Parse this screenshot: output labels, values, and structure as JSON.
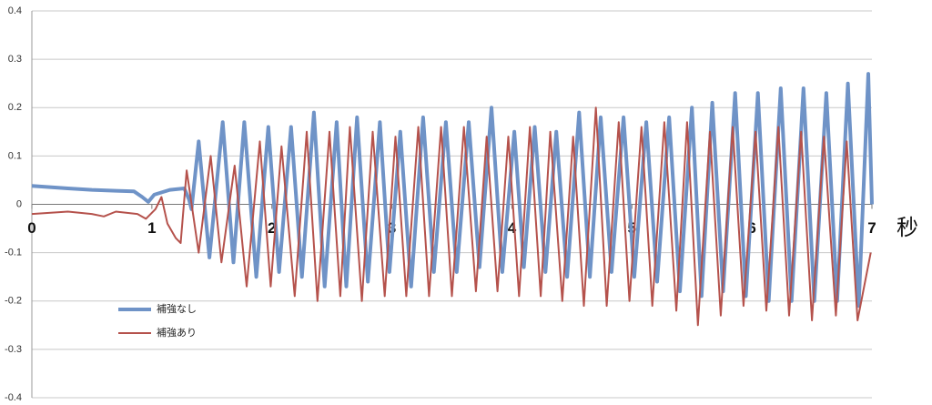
{
  "chart_data": {
    "type": "line",
    "x_label": "秒",
    "xlim": [
      0,
      7
    ],
    "xticks": [
      0,
      1,
      2,
      3,
      4,
      5,
      6,
      7
    ],
    "ylim": [
      -0.4,
      0.4
    ],
    "yticks": [
      -0.4,
      -0.3,
      -0.2,
      -0.1,
      0,
      0.1,
      0.2,
      0.3,
      0.4
    ],
    "grid": true,
    "legend": "lower left",
    "series": [
      {
        "name": "補強なし",
        "color": "#6f93c7",
        "width": 4,
        "x": [
          0,
          0.3,
          0.5,
          0.7,
          0.85,
          0.92,
          0.97,
          1.02,
          1.15,
          1.27,
          1.31,
          1.33,
          1.39,
          1.48,
          1.59,
          1.68,
          1.77,
          1.87,
          1.97,
          2.06,
          2.16,
          2.25,
          2.35,
          2.44,
          2.54,
          2.62,
          2.71,
          2.8,
          2.9,
          2.98,
          3.07,
          3.16,
          3.26,
          3.35,
          3.45,
          3.54,
          3.64,
          3.73,
          3.83,
          3.92,
          4.02,
          4.1,
          4.19,
          4.28,
          4.37,
          4.46,
          4.56,
          4.65,
          4.74,
          4.83,
          4.93,
          5.02,
          5.12,
          5.21,
          5.31,
          5.4,
          5.5,
          5.58,
          5.67,
          5.76,
          5.86,
          5.95,
          6.05,
          6.14,
          6.24,
          6.33,
          6.43,
          6.52,
          6.62,
          6.71,
          6.8,
          6.89,
          6.97,
          7.0
        ],
        "values": [
          0.038,
          0.033,
          0.03,
          0.028,
          0.027,
          0.015,
          0.005,
          0.02,
          0.03,
          0.033,
          0.01,
          -0.01,
          0.13,
          -0.11,
          0.17,
          -0.12,
          0.17,
          -0.15,
          0.16,
          -0.14,
          0.16,
          -0.15,
          0.19,
          -0.17,
          0.17,
          -0.17,
          0.18,
          -0.16,
          0.17,
          -0.14,
          0.15,
          -0.17,
          0.18,
          -0.14,
          0.17,
          -0.14,
          0.17,
          -0.13,
          0.2,
          -0.14,
          0.15,
          -0.13,
          0.16,
          -0.14,
          0.15,
          -0.15,
          0.19,
          -0.15,
          0.18,
          -0.14,
          0.18,
          -0.15,
          0.17,
          -0.16,
          0.18,
          -0.18,
          0.2,
          -0.19,
          0.21,
          -0.18,
          0.23,
          -0.19,
          0.23,
          -0.2,
          0.24,
          -0.2,
          0.24,
          -0.2,
          0.23,
          -0.2,
          0.25,
          -0.21,
          0.27,
          0.0
        ]
      },
      {
        "name": "補強あり",
        "color": "#b5524c",
        "width": 2,
        "x": [
          0,
          0.3,
          0.5,
          0.6,
          0.7,
          0.88,
          0.95,
          1.03,
          1.08,
          1.13,
          1.2,
          1.24,
          1.29,
          1.39,
          1.49,
          1.58,
          1.69,
          1.79,
          1.9,
          1.99,
          2.08,
          2.19,
          2.29,
          2.38,
          2.48,
          2.57,
          2.65,
          2.75,
          2.84,
          2.94,
          3.03,
          3.12,
          3.22,
          3.31,
          3.41,
          3.5,
          3.6,
          3.7,
          3.79,
          3.88,
          3.97,
          4.06,
          4.15,
          4.24,
          4.32,
          4.42,
          4.51,
          4.6,
          4.7,
          4.79,
          4.89,
          4.98,
          5.08,
          5.17,
          5.27,
          5.37,
          5.46,
          5.55,
          5.65,
          5.74,
          5.84,
          5.93,
          6.03,
          6.12,
          6.22,
          6.31,
          6.41,
          6.5,
          6.6,
          6.7,
          6.79,
          6.88,
          6.99
        ],
        "values": [
          -0.02,
          -0.015,
          -0.02,
          -0.025,
          -0.015,
          -0.02,
          -0.03,
          -0.01,
          0.015,
          -0.04,
          -0.07,
          -0.08,
          0.07,
          -0.1,
          0.1,
          -0.12,
          0.08,
          -0.17,
          0.13,
          -0.17,
          0.12,
          -0.19,
          0.15,
          -0.2,
          0.15,
          -0.19,
          0.16,
          -0.2,
          0.15,
          -0.19,
          0.14,
          -0.19,
          0.16,
          -0.19,
          0.16,
          -0.19,
          0.16,
          -0.18,
          0.14,
          -0.18,
          0.14,
          -0.19,
          0.16,
          -0.19,
          0.15,
          -0.2,
          0.14,
          -0.21,
          0.2,
          -0.21,
          0.17,
          -0.2,
          0.16,
          -0.21,
          0.17,
          -0.22,
          0.17,
          -0.25,
          0.15,
          -0.23,
          0.16,
          -0.21,
          0.15,
          -0.22,
          0.16,
          -0.23,
          0.15,
          -0.24,
          0.14,
          -0.23,
          0.13,
          -0.24,
          -0.1
        ]
      }
    ]
  }
}
